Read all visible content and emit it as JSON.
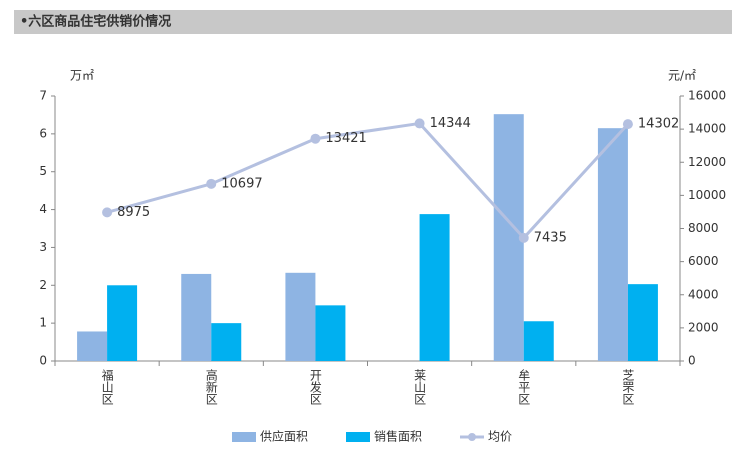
{
  "chart_data": {
    "type": "bar-line",
    "title": "•六区商品住宅供销价情况",
    "y_label": "万㎡",
    "y2_label": "元/㎡",
    "categories": [
      "福山区",
      "高新区",
      "开发区",
      "莱山区",
      "牟平区",
      "芝罘区"
    ],
    "series": [
      {
        "name": "供应面积",
        "color": "#8eb4e3",
        "type": "bar",
        "values": [
          0.78,
          2.3,
          2.33,
          null,
          6.52,
          6.15
        ]
      },
      {
        "name": "销售面积",
        "color": "#00b0f0",
        "type": "bar",
        "values": [
          2.0,
          1.0,
          1.47,
          3.88,
          1.05,
          2.03
        ]
      },
      {
        "name": "均价",
        "color": "#b4c0e0",
        "type": "line",
        "axis": "y2",
        "values": [
          8975,
          10697,
          13421,
          14344,
          7435,
          14302
        ]
      }
    ],
    "ylim": [
      0,
      7
    ],
    "yticks": [
      0,
      1,
      2,
      3,
      4,
      5,
      6,
      7
    ],
    "y2lim": [
      0,
      16000
    ],
    "y2ticks": [
      0,
      2000,
      4000,
      6000,
      8000,
      10000,
      12000,
      14000,
      16000
    ],
    "legend": "bottom"
  }
}
